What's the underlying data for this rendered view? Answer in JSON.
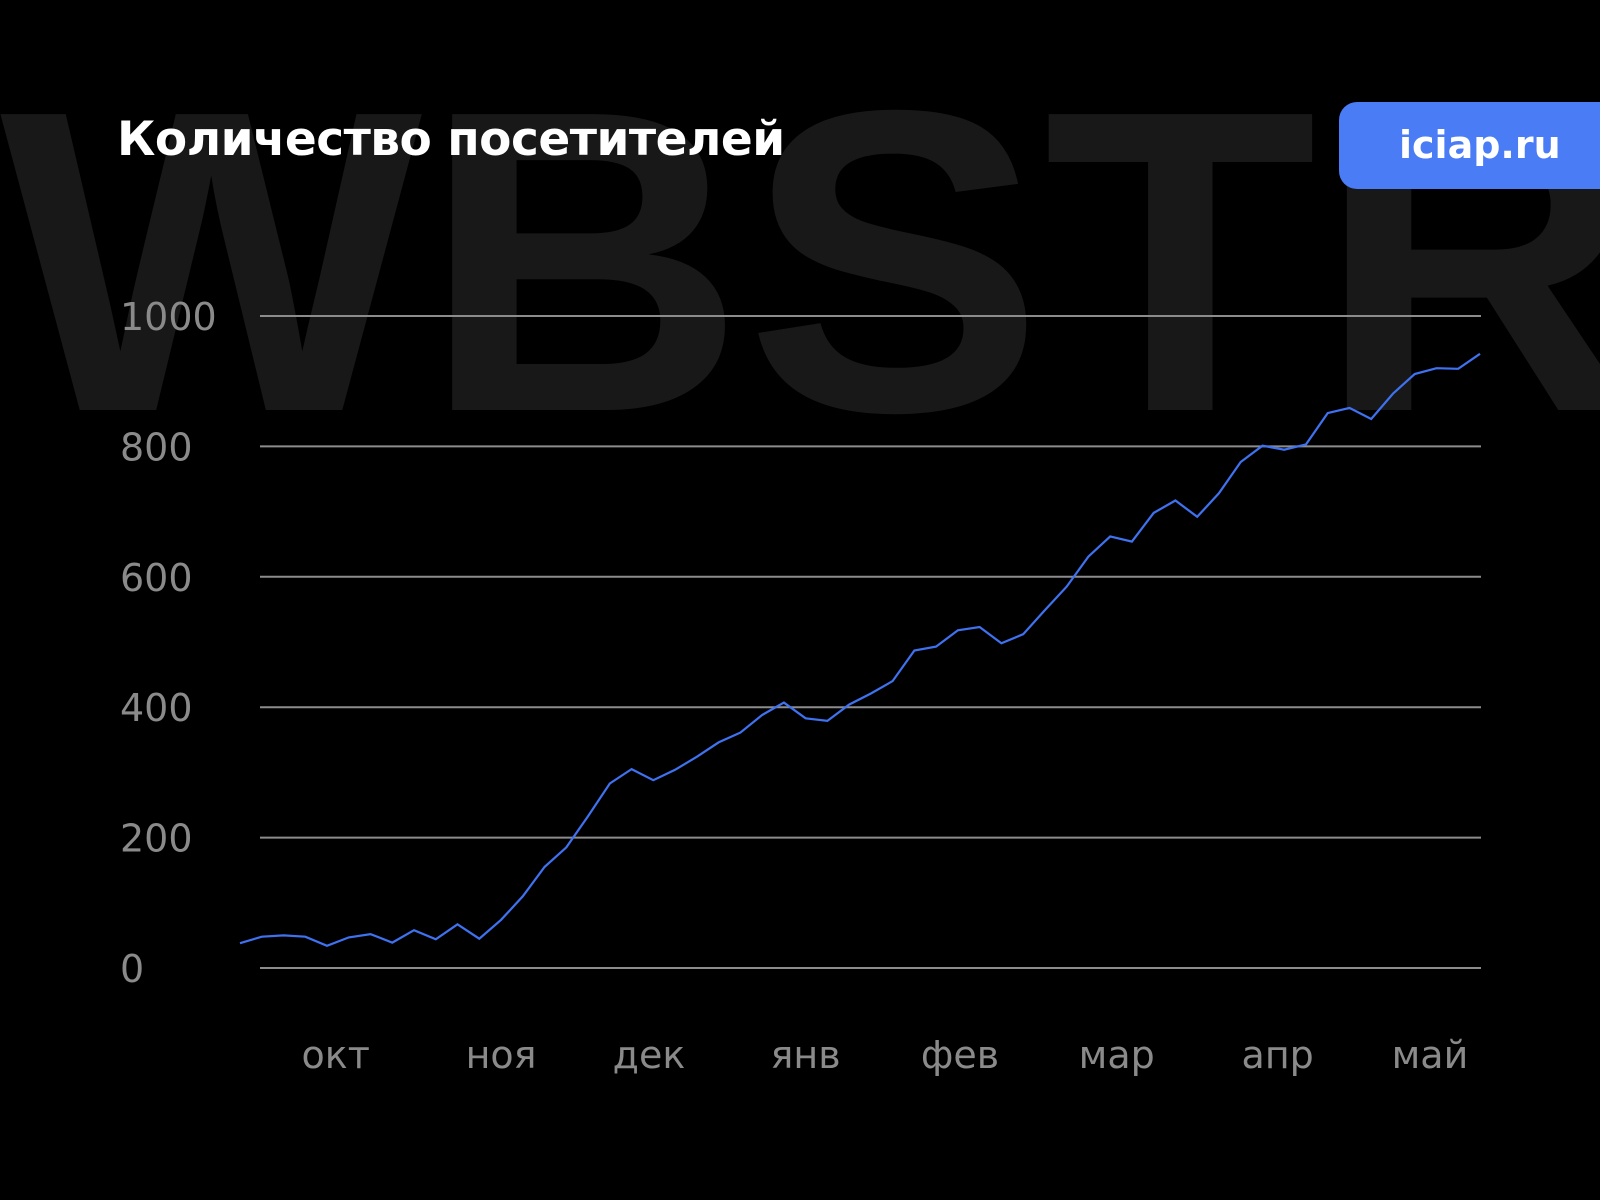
{
  "watermark": "WBSTR",
  "badge": {
    "label": "iciap.ru",
    "color": "#4a7cf6"
  },
  "chart_data": {
    "type": "area",
    "title": "Количество посетителей",
    "xlabel": "",
    "ylabel": "",
    "ylim": [
      0,
      1000
    ],
    "yticks": [
      "0",
      "200",
      "400",
      "600",
      "800",
      "1000"
    ],
    "ytick_values": [
      0,
      200,
      400,
      600,
      800,
      1000
    ],
    "grid": true,
    "xticks": [
      {
        "label": "окт",
        "at": 4.4
      },
      {
        "label": "ноя",
        "at": 12.0
      },
      {
        "label": "дек",
        "at": 18.8
      },
      {
        "label": "янв",
        "at": 26.0
      },
      {
        "label": "фев",
        "at": 33.1
      },
      {
        "label": "мар",
        "at": 40.3
      },
      {
        "label": "апр",
        "at": 47.7
      },
      {
        "label": "май",
        "at": 54.7
      }
    ],
    "line_color": "#3f72f0",
    "values": [
      38,
      48,
      50,
      48,
      34,
      47,
      52,
      39,
      58,
      44,
      67,
      45,
      74,
      110,
      155,
      185,
      233,
      283,
      305,
      288,
      304,
      324,
      346,
      361,
      388,
      407,
      383,
      379,
      404,
      421,
      440,
      487,
      493,
      518,
      523,
      498,
      512,
      549,
      585,
      631,
      662,
      654,
      698,
      717,
      692,
      728,
      776,
      801,
      795,
      803,
      851,
      859,
      842,
      881,
      911,
      920,
      919,
      942
    ]
  }
}
